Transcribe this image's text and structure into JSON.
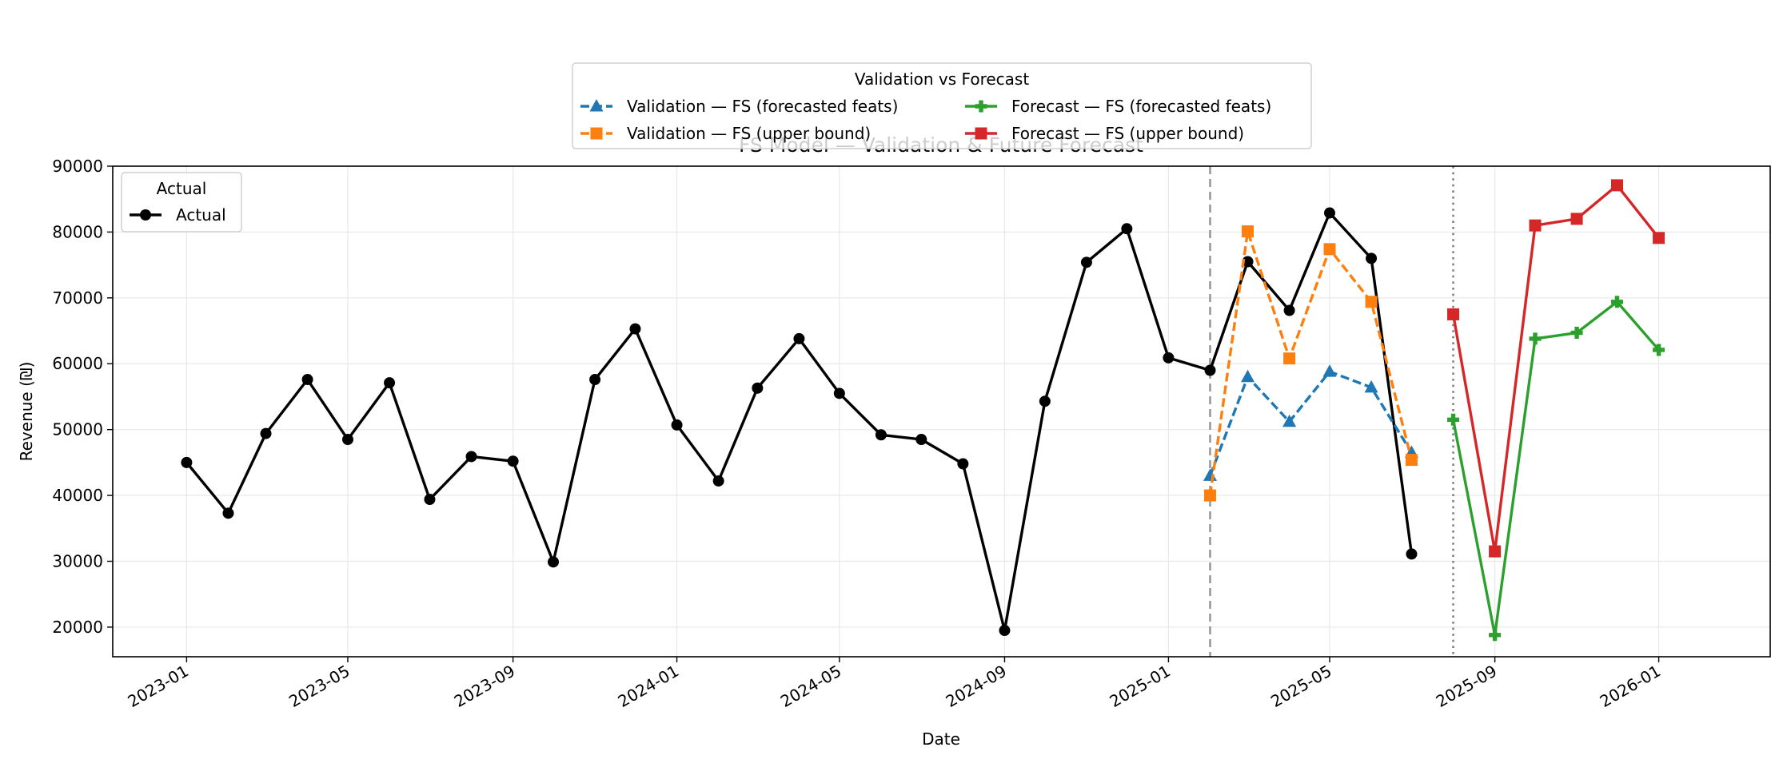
{
  "chart_data": {
    "type": "line",
    "title": "FS Model — Validation & Future Forecast",
    "xlabel": "Date",
    "ylabel": "Revenue (₪)",
    "x_axis": {
      "type": "date",
      "range": [
        "2022-11-07",
        "2026-03-25"
      ],
      "tick_labels": [
        "2023-01",
        "2023-05",
        "2023-09",
        "2024-01",
        "2024-05",
        "2024-09",
        "2025-01",
        "2025-05",
        "2025-09",
        "2026-01"
      ]
    },
    "y_axis": {
      "range": [
        15500,
        90000
      ],
      "ticks": [
        20000,
        30000,
        40000,
        50000,
        60000,
        70000,
        80000,
        90000
      ]
    },
    "grid": true,
    "vlines": [
      {
        "x": "2025-02-01",
        "style": "dashed",
        "color": "#999999"
      },
      {
        "x": "2025-08-01",
        "style": "dotted",
        "color": "#808080"
      }
    ],
    "legends": {
      "main": {
        "title": "Validation vs Forecast",
        "placement": "top-center"
      },
      "actual": {
        "title": "Actual",
        "placement": "upper-left"
      }
    },
    "series": [
      {
        "name": "Actual",
        "color": "#000000",
        "linestyle": "solid",
        "marker": "circle",
        "legend": "actual",
        "points": [
          [
            "2023-01-01",
            45000
          ],
          [
            "2023-02-01",
            37300
          ],
          [
            "2023-03-01",
            49400
          ],
          [
            "2023-04-01",
            57600
          ],
          [
            "2023-05-01",
            48500
          ],
          [
            "2023-06-01",
            57100
          ],
          [
            "2023-07-01",
            39400
          ],
          [
            "2023-08-01",
            45900
          ],
          [
            "2023-09-01",
            45200
          ],
          [
            "2023-10-01",
            29900
          ],
          [
            "2023-11-01",
            57600
          ],
          [
            "2023-12-01",
            65300
          ],
          [
            "2024-01-01",
            50700
          ],
          [
            "2024-02-01",
            42200
          ],
          [
            "2024-03-01",
            56300
          ],
          [
            "2024-04-01",
            63800
          ],
          [
            "2024-05-01",
            55500
          ],
          [
            "2024-06-01",
            49200
          ],
          [
            "2024-07-01",
            48500
          ],
          [
            "2024-08-01",
            44800
          ],
          [
            "2024-09-01",
            19500
          ],
          [
            "2024-10-01",
            54300
          ],
          [
            "2024-11-01",
            75400
          ],
          [
            "2024-12-01",
            80500
          ],
          [
            "2025-01-01",
            60900
          ],
          [
            "2025-02-01",
            59000
          ],
          [
            "2025-03-01",
            75500
          ],
          [
            "2025-04-01",
            68100
          ],
          [
            "2025-05-01",
            82900
          ],
          [
            "2025-06-01",
            76000
          ],
          [
            "2025-07-01",
            31100
          ]
        ]
      },
      {
        "name": "Validation — FS (forecasted feats)",
        "color": "#1f77b4",
        "linestyle": "dashed",
        "marker": "triangle",
        "legend": "main",
        "points": [
          [
            "2025-02-01",
            43000
          ],
          [
            "2025-03-01",
            58000
          ],
          [
            "2025-04-01",
            51200
          ],
          [
            "2025-05-01",
            58800
          ],
          [
            "2025-06-01",
            56400
          ],
          [
            "2025-07-01",
            46500
          ]
        ]
      },
      {
        "name": "Validation — FS (upper bound)",
        "color": "#ff7f0e",
        "linestyle": "dashed",
        "marker": "square",
        "legend": "main",
        "points": [
          [
            "2025-02-01",
            40000
          ],
          [
            "2025-03-01",
            80100
          ],
          [
            "2025-04-01",
            60800
          ],
          [
            "2025-05-01",
            77400
          ],
          [
            "2025-06-01",
            69400
          ],
          [
            "2025-07-01",
            45400
          ]
        ]
      },
      {
        "name": "Forecast — FS (forecasted feats)",
        "color": "#2ca02c",
        "linestyle": "solid",
        "marker": "plus",
        "legend": "main",
        "points": [
          [
            "2025-08-01",
            51500
          ],
          [
            "2025-09-01",
            18800
          ],
          [
            "2025-10-01",
            63800
          ],
          [
            "2025-11-01",
            64700
          ],
          [
            "2025-12-01",
            69400
          ],
          [
            "2026-01-01",
            62100
          ]
        ]
      },
      {
        "name": "Forecast — FS (upper bound)",
        "color": "#d62728",
        "linestyle": "solid",
        "marker": "square",
        "legend": "main",
        "points": [
          [
            "2025-08-01",
            67500
          ],
          [
            "2025-09-01",
            31500
          ],
          [
            "2025-10-01",
            81000
          ],
          [
            "2025-11-01",
            82000
          ],
          [
            "2025-12-01",
            87100
          ],
          [
            "2026-01-01",
            79100
          ]
        ]
      }
    ]
  }
}
